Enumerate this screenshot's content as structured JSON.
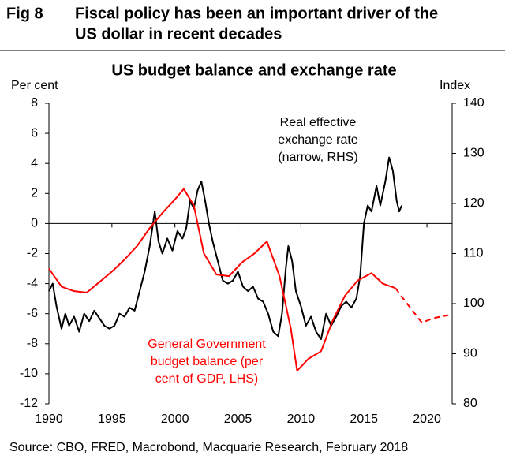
{
  "header": {
    "fig": "Fig 8",
    "title_lines": [
      "Fiscal policy has been an important driver of the",
      "US dollar in recent decades"
    ]
  },
  "chart_data": {
    "type": "line",
    "title": "US budget balance and exchange rate",
    "y_label": "Per cent",
    "y2_label": "Index",
    "xlim": [
      1990,
      2022
    ],
    "xticks": [
      1990,
      1995,
      2000,
      2005,
      2010,
      2015,
      2020
    ],
    "ylim": [
      -12,
      8
    ],
    "yticks": [
      -12,
      -10,
      -8,
      -6,
      -4,
      -2,
      0,
      2,
      4,
      6,
      8
    ],
    "y2lim": [
      80,
      140
    ],
    "y2ticks": [
      80,
      90,
      100,
      110,
      120,
      130,
      140
    ],
    "grid": false,
    "series": [
      {
        "label_lines": [
          "Real effective",
          "exchange rate",
          "(narrow, RHS)"
        ],
        "color": "#000000",
        "axis": "y2",
        "dashed": false,
        "x": [
          1990,
          1990.3,
          1990.6,
          1991,
          1991.3,
          1991.6,
          1992,
          1992.4,
          1992.8,
          1993.2,
          1993.6,
          1994,
          1994.4,
          1994.8,
          1995.2,
          1995.6,
          1996,
          1996.4,
          1996.8,
          1997.2,
          1997.6,
          1998,
          1998.4,
          1998.7,
          1999,
          1999.4,
          1999.8,
          2000.2,
          2000.6,
          2000.9,
          2001.2,
          2001.5,
          2001.8,
          2002.1,
          2002.4,
          2002.7,
          2003,
          2003.4,
          2003.8,
          2004.2,
          2004.6,
          2005,
          2005.4,
          2005.8,
          2006.2,
          2006.6,
          2007,
          2007.4,
          2007.8,
          2008.2,
          2008.5,
          2008.8,
          2009,
          2009.3,
          2009.6,
          2010,
          2010.4,
          2010.8,
          2011.2,
          2011.6,
          2012,
          2012.4,
          2012.8,
          2013.2,
          2013.6,
          2014,
          2014.4,
          2014.7,
          2015,
          2015.3,
          2015.6,
          2016,
          2016.3,
          2016.7,
          2017,
          2017.3,
          2017.6,
          2017.8,
          2018
        ],
        "values": [
          102.5,
          104,
          99.5,
          95,
          98,
          95.6,
          97.4,
          94.4,
          98,
          96.5,
          98.6,
          97.1,
          95.6,
          95,
          95.6,
          98,
          97.4,
          99.2,
          98.6,
          102.5,
          106.4,
          111.5,
          118.4,
          112.4,
          110,
          113,
          110.6,
          114.5,
          113,
          115.1,
          120.5,
          119,
          122.6,
          124.4,
          120.5,
          116,
          112.4,
          108.5,
          104.6,
          104,
          104.6,
          106.4,
          103.4,
          102.5,
          103.4,
          101,
          100.4,
          98,
          94.4,
          93.5,
          98,
          107,
          111.5,
          108.5,
          102.5,
          99.5,
          95.6,
          97.4,
          94.4,
          92.9,
          98,
          95.6,
          97.4,
          99.5,
          100.4,
          99.2,
          101,
          105.5,
          116,
          119.6,
          118.4,
          123.5,
          119.6,
          124.4,
          129.2,
          126.5,
          120.5,
          118.4,
          119.6
        ]
      },
      {
        "label_lines": [
          "General Government",
          "budget balance (per",
          "cent of GDP, LHS)"
        ],
        "color": "#ff0000",
        "axis": "y",
        "dashed": false,
        "x": [
          1990,
          1991,
          1992,
          1993,
          1994,
          1995,
          1996,
          1997,
          1998,
          1999,
          2000,
          2000.7,
          2001.5,
          2002.3,
          2003.3,
          2004.3,
          2005.3,
          2006.3,
          2007.3,
          2008.3,
          2009.2,
          2009.7,
          2010.6,
          2011.6,
          2012.5,
          2013.5,
          2014.5,
          2015.6,
          2016.5,
          2017.5
        ],
        "values": [
          -3,
          -4.2,
          -4.5,
          -4.6,
          -3.9,
          -3.2,
          -2.4,
          -1.5,
          -0.3,
          0.7,
          1.6,
          2.3,
          1.2,
          -2,
          -3.4,
          -3.5,
          -2.6,
          -2,
          -1.2,
          -3.5,
          -7,
          -9.8,
          -9,
          -8.5,
          -6.5,
          -4.8,
          -3.8,
          -3.3,
          -4,
          -4.3
        ]
      },
      {
        "color": "#ff0000",
        "axis": "y",
        "dashed": true,
        "x": [
          2017.5,
          2018.3,
          2019.6,
          2020.5,
          2021.7
        ],
        "values": [
          -4.3,
          -5.2,
          -6.6,
          -6.3,
          -6.1
        ]
      }
    ]
  },
  "source": "Source: CBO, FRED, Macrobond, Macquarie Research, February 2018"
}
